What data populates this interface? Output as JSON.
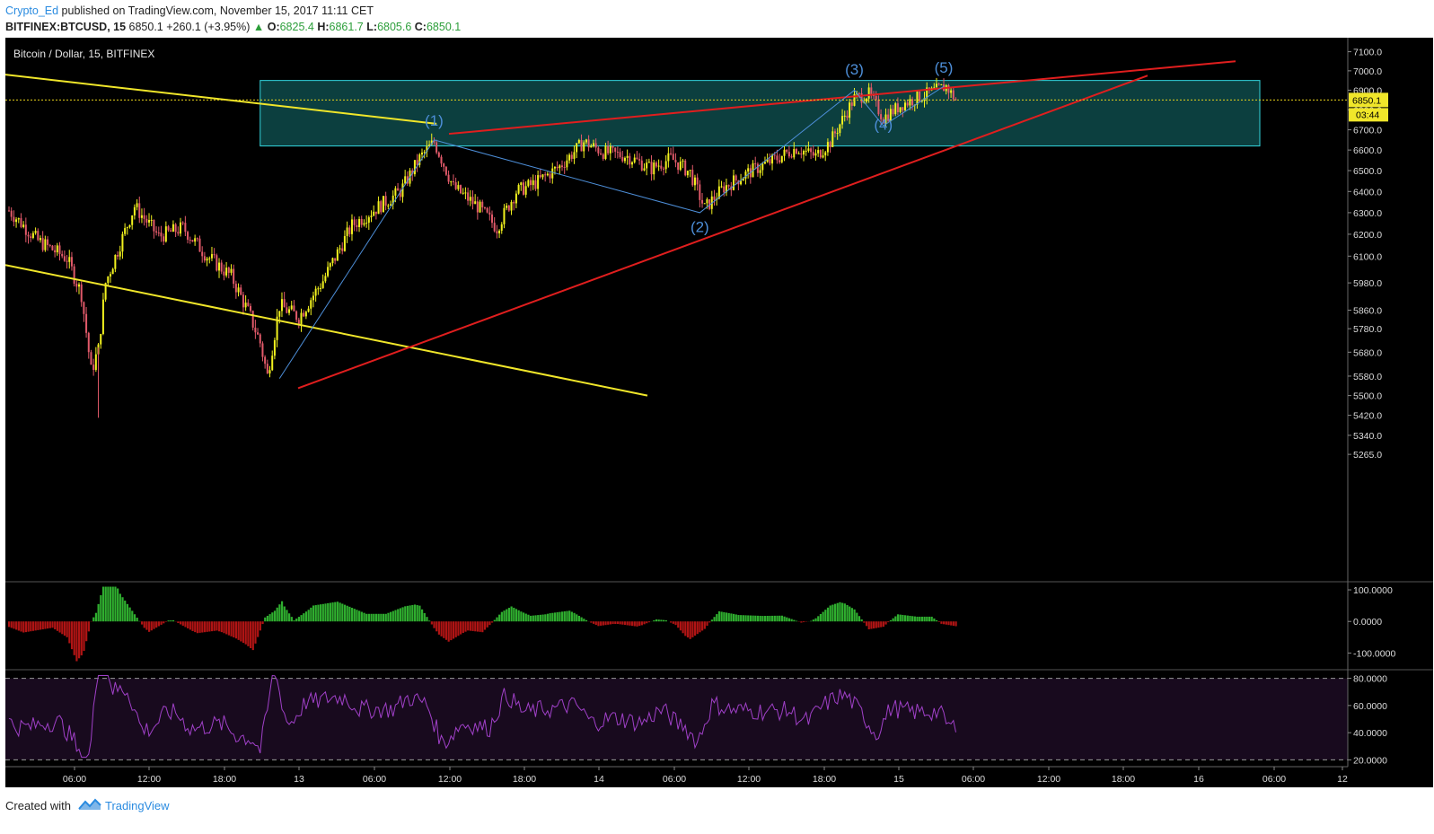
{
  "header": {
    "author": "Crypto_Ed",
    "published_text": "published on TradingView.com, November 15, 2017 11:11 CET",
    "symbol": "BITFINEX:BTCUSD, 15",
    "last": "6850.1",
    "change": "+260.1 (+3.95%)",
    "change_arrow": "▲",
    "o_label": "O:",
    "o_value": "6825.4",
    "h_label": "H:",
    "h_value": "6861.7",
    "l_label": "L:",
    "l_value": "6805.6",
    "c_label": "C:",
    "c_value": "6850.1"
  },
  "chart_title": "Bitcoin / Dollar, 15, BITFINEX",
  "price_tag": "6850.1",
  "countdown_tag": "03:44",
  "footer": {
    "created_with": "Created with",
    "brand": "TradingView"
  },
  "colors": {
    "up_candle": "#f2f21e",
    "down_candle": "#e25a6a",
    "trend_red": "#e01e1e",
    "trend_yellow": "#f0e62a",
    "wave_line": "#4d8ed8",
    "zone_fill": "#0e4a4a",
    "zone_border": "#33d6de",
    "osc_up": "#2fae2f",
    "osc_down": "#b01414",
    "rsi_line": "#a040c8",
    "rsi_bg": "#180a1e"
  },
  "chart_data": {
    "type": "candlestick",
    "price_axis": {
      "ticks": [
        "7100.0",
        "7000.0",
        "6900.0",
        "6800.0",
        "6700.0",
        "6600.0",
        "6500.0",
        "6400.0",
        "6300.0",
        "6200.0",
        "6100.0",
        "5980.0",
        "5860.0",
        "5780.0",
        "5680.0",
        "5580.0",
        "5500.0",
        "5420.0",
        "5340.0",
        "5265.0"
      ],
      "scale": "log"
    },
    "time_axis": {
      "ticks": [
        "06:00",
        "12:00",
        "18:00",
        "13",
        "06:00",
        "12:00",
        "18:00",
        "14",
        "06:00",
        "12:00",
        "18:00",
        "15",
        "06:00",
        "12:00",
        "18:00",
        "16",
        "06:00",
        "12"
      ]
    },
    "price_waypoints": [
      {
        "t": 0,
        "p": 6310
      },
      {
        "t": 12,
        "p": 6170
      },
      {
        "t": 24,
        "p": 6090
      },
      {
        "t": 30,
        "p": 5930
      },
      {
        "t": 34,
        "p": 5600
      },
      {
        "t": 37,
        "p": 5690
      },
      {
        "t": 40,
        "p": 5980
      },
      {
        "t": 52,
        "p": 6330
      },
      {
        "t": 62,
        "p": 6190
      },
      {
        "t": 72,
        "p": 6230
      },
      {
        "t": 82,
        "p": 6100
      },
      {
        "t": 92,
        "p": 6010
      },
      {
        "t": 100,
        "p": 5830
      },
      {
        "t": 104,
        "p": 5720
      },
      {
        "t": 107,
        "p": 5580
      },
      {
        "t": 112,
        "p": 5880
      },
      {
        "t": 120,
        "p": 5830
      },
      {
        "t": 130,
        "p": 5990
      },
      {
        "t": 142,
        "p": 6240
      },
      {
        "t": 152,
        "p": 6320
      },
      {
        "t": 162,
        "p": 6400
      },
      {
        "t": 170,
        "p": 6560
      },
      {
        "t": 176,
        "p": 6640
      },
      {
        "t": 184,
        "p": 6420
      },
      {
        "t": 194,
        "p": 6330
      },
      {
        "t": 202,
        "p": 6230
      },
      {
        "t": 210,
        "p": 6400
      },
      {
        "t": 218,
        "p": 6440
      },
      {
        "t": 228,
        "p": 6520
      },
      {
        "t": 238,
        "p": 6640
      },
      {
        "t": 246,
        "p": 6590
      },
      {
        "t": 256,
        "p": 6570
      },
      {
        "t": 266,
        "p": 6510
      },
      {
        "t": 274,
        "p": 6560
      },
      {
        "t": 282,
        "p": 6490
      },
      {
        "t": 288,
        "p": 6320
      },
      {
        "t": 296,
        "p": 6420
      },
      {
        "t": 306,
        "p": 6490
      },
      {
        "t": 318,
        "p": 6560
      },
      {
        "t": 326,
        "p": 6610
      },
      {
        "t": 334,
        "p": 6570
      },
      {
        "t": 340,
        "p": 6640
      },
      {
        "t": 350,
        "p": 6860
      },
      {
        "t": 356,
        "p": 6880
      },
      {
        "t": 362,
        "p": 6760
      },
      {
        "t": 370,
        "p": 6830
      },
      {
        "t": 380,
        "p": 6880
      },
      {
        "t": 388,
        "p": 6920
      },
      {
        "t": 392,
        "p": 6850
      }
    ],
    "waves": [
      {
        "label": "(1)",
        "t": 176,
        "p": 6720
      },
      {
        "label": "(2)",
        "t": 286,
        "p": 6210
      },
      {
        "label": "(3)",
        "t": 350,
        "p": 6980
      },
      {
        "label": "(4)",
        "t": 362,
        "p": 6700
      },
      {
        "label": "(5)",
        "t": 387,
        "p": 6990
      }
    ],
    "resistance_zone": {
      "top": 6950,
      "bottom": 6620,
      "t_start": 104
    },
    "oscillator": {
      "ticks": [
        "100.0000",
        "0.0000",
        "-100.0000"
      ],
      "range": [
        -150,
        120
      ]
    },
    "rsi": {
      "ticks": [
        "80.0000",
        "60.0000",
        "40.0000",
        "20.0000"
      ],
      "overbought": 80,
      "oversold": 20,
      "range": [
        15,
        85
      ]
    }
  }
}
